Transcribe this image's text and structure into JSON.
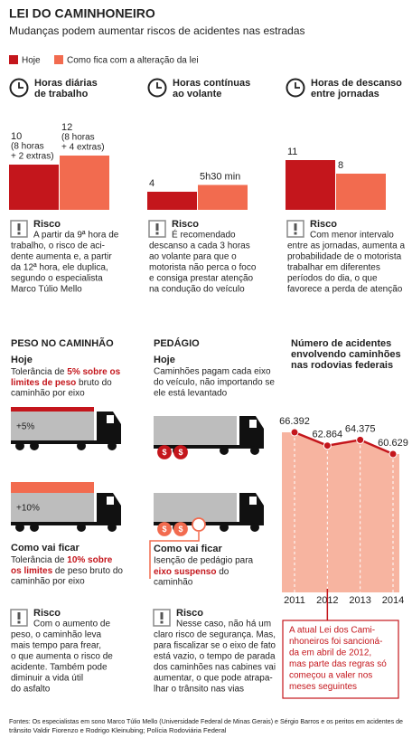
{
  "header": {
    "title": "LEI DO CAMINHONEIRO",
    "subtitle": "Mudanças podem aumentar riscos de acidentes nas estradas"
  },
  "legend": [
    {
      "label": "Hoje",
      "color": "#c4161c"
    },
    {
      "label": "Como fica com a alteração da lei",
      "color": "#f26b4f"
    }
  ],
  "chart_data": [
    {
      "type": "bar",
      "title": [
        "Horas diárias",
        "de trabalho"
      ],
      "values": [
        10,
        12
      ],
      "colors": [
        "#c4161c",
        "#f26b4f"
      ],
      "value_labels": [
        "10",
        "12"
      ],
      "notes": [
        [
          "(8 horas",
          "+ 2 extras)"
        ],
        [
          "(8 horas",
          "+ 4 extras)"
        ]
      ]
    },
    {
      "type": "bar",
      "title": [
        "Horas contínuas",
        "ao volante"
      ],
      "values": [
        4,
        5.5
      ],
      "colors": [
        "#c4161c",
        "#f26b4f"
      ],
      "value_labels": [
        "4",
        "5h30 min"
      ]
    },
    {
      "type": "bar",
      "title": [
        "Horas de descanso",
        "entre jornadas"
      ],
      "values": [
        11,
        8
      ],
      "colors": [
        "#c4161c",
        "#f26b4f"
      ],
      "value_labels": [
        "11",
        "8"
      ]
    },
    {
      "type": "line",
      "title": [
        "Número de acidentes",
        "envolvendo caminhões",
        "nas rodovias federais"
      ],
      "categories": [
        "2011",
        "2012",
        "2013",
        "2014"
      ],
      "values": [
        66392,
        62864,
        64375,
        60629
      ],
      "value_labels": [
        "66.392",
        "62.864",
        "64.375",
        "60.629"
      ],
      "color": "#c4161c",
      "fill": "#f7b4a0"
    }
  ],
  "risks": [
    {
      "title": "Risco",
      "lines": [
        "A partir da 9ª hora de",
        "trabalho, o risco de aci-",
        "dente aumenta e, a partir",
        "da 12ª hora, ele duplica,",
        "segundo o especialista",
        "Marco Túlio Mello"
      ]
    },
    {
      "title": "Risco",
      "lines": [
        "É recomendado",
        "descanso a cada 3 horas",
        "ao volante para que o",
        "motorista não perca o foco",
        "e consiga prestar atenção",
        "na condução do veículo"
      ]
    },
    {
      "title": "Risco",
      "lines": [
        "Com menor intervalo",
        "entre as jornadas, aumenta a",
        "probabilidade de o motorista",
        "trabalhar em diferentes",
        "períodos do dia, o que",
        "favorece a perda de atenção"
      ]
    }
  ],
  "peso": {
    "title": "PESO NO CAMINHÃO",
    "today_label": "Hoje",
    "today_lines": [
      [
        {
          "text": "Tolerância de "
        },
        {
          "text": "5% sobre os",
          "em": true
        }
      ],
      [
        {
          "text": "limites de peso",
          "em": true
        },
        {
          "text": " bruto do"
        }
      ],
      "caminhão por eixo"
    ],
    "today_mark": "+5%",
    "future_label": "Como vai ficar",
    "future_lines": [
      [
        {
          "text": "Tolerância de "
        },
        {
          "text": "10% sobre",
          "em": true
        }
      ],
      [
        {
          "text": "os limites",
          "em": true
        },
        {
          "text": " de peso bruto do"
        }
      ],
      "caminhão por eixo"
    ],
    "future_mark": "+10%",
    "risk": {
      "title": "Risco",
      "lines": [
        "Com o aumento de",
        "peso, o caminhão leva",
        "mais tempo para frear,",
        "o que aumenta o risco de",
        "acidente. Também pode",
        "diminuir a vida útil",
        "do asfalto"
      ]
    }
  },
  "pedagio": {
    "title": "PEDÁGIO",
    "today_label": "Hoje",
    "today_lines": [
      "Caminhões pagam cada eixo",
      "do veículo, não importando se",
      "ele está levantado"
    ],
    "future_label": "Como vai ficar",
    "future_lines": [
      "Isenção de pedágio para",
      [
        {
          "text": "eixo suspenso",
          "em": true
        },
        {
          "text": " do"
        }
      ],
      "caminhão"
    ],
    "symbol": "$",
    "risk": {
      "title": "Risco",
      "lines": [
        "Nesse caso, não há um",
        "claro risco de segurança. Mas,",
        "para fiscalizar se o eixo de fato",
        "está vazio, o tempo de parada",
        "dos caminhões nas cabines vai",
        "aumentar, o que pode atrapa-",
        "lhar o trânsito nas vias"
      ]
    }
  },
  "note": {
    "lines": [
      "A atual Lei dos Cami-",
      "nhoneiros foi sancioná-",
      "da em abril de 2012,",
      "mas parte das regras só",
      "começou a valer nos",
      "meses seguintes"
    ]
  },
  "source": [
    "Fontes: Os especialistas em sono Marco Túlio Mello (Universidade Federal de Minas Gerais) e Sérgio Barros e os peritos em acidentes de",
    "trânsito Valdir Fiorenzo e Rodrigo Kleinubing; Polícia Rodoviária Federal"
  ]
}
